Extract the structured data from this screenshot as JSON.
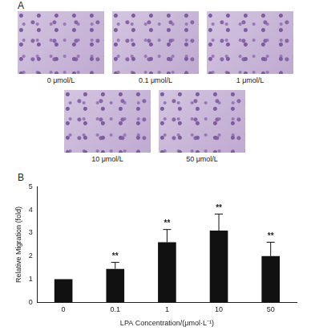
{
  "panels": [
    {
      "label": "A",
      "images": [
        "0 μmol/L",
        "0.1 μmol/L",
        "1 μmol/L",
        "10 μmol/L",
        "50 μmol/L"
      ]
    }
  ],
  "chart_data": {
    "type": "bar",
    "panel_label": "B",
    "categories": [
      "0",
      "0.1",
      "1",
      "10",
      "50"
    ],
    "values": [
      1,
      1.45,
      2.6,
      3.1,
      2.0
    ],
    "errors": [
      null,
      0.28,
      0.55,
      0.72,
      0.6
    ],
    "annotations": [
      null,
      "**",
      "**",
      "**",
      "**"
    ],
    "color": "#111111",
    "x_label": "LPA Concentration/(μmol·L⁻¹)",
    "y_label": "Relative Migration (fold)",
    "ylim": [
      0,
      5
    ],
    "yticks": [
      0,
      1,
      2,
      3,
      4,
      5
    ],
    "grid": false
  }
}
